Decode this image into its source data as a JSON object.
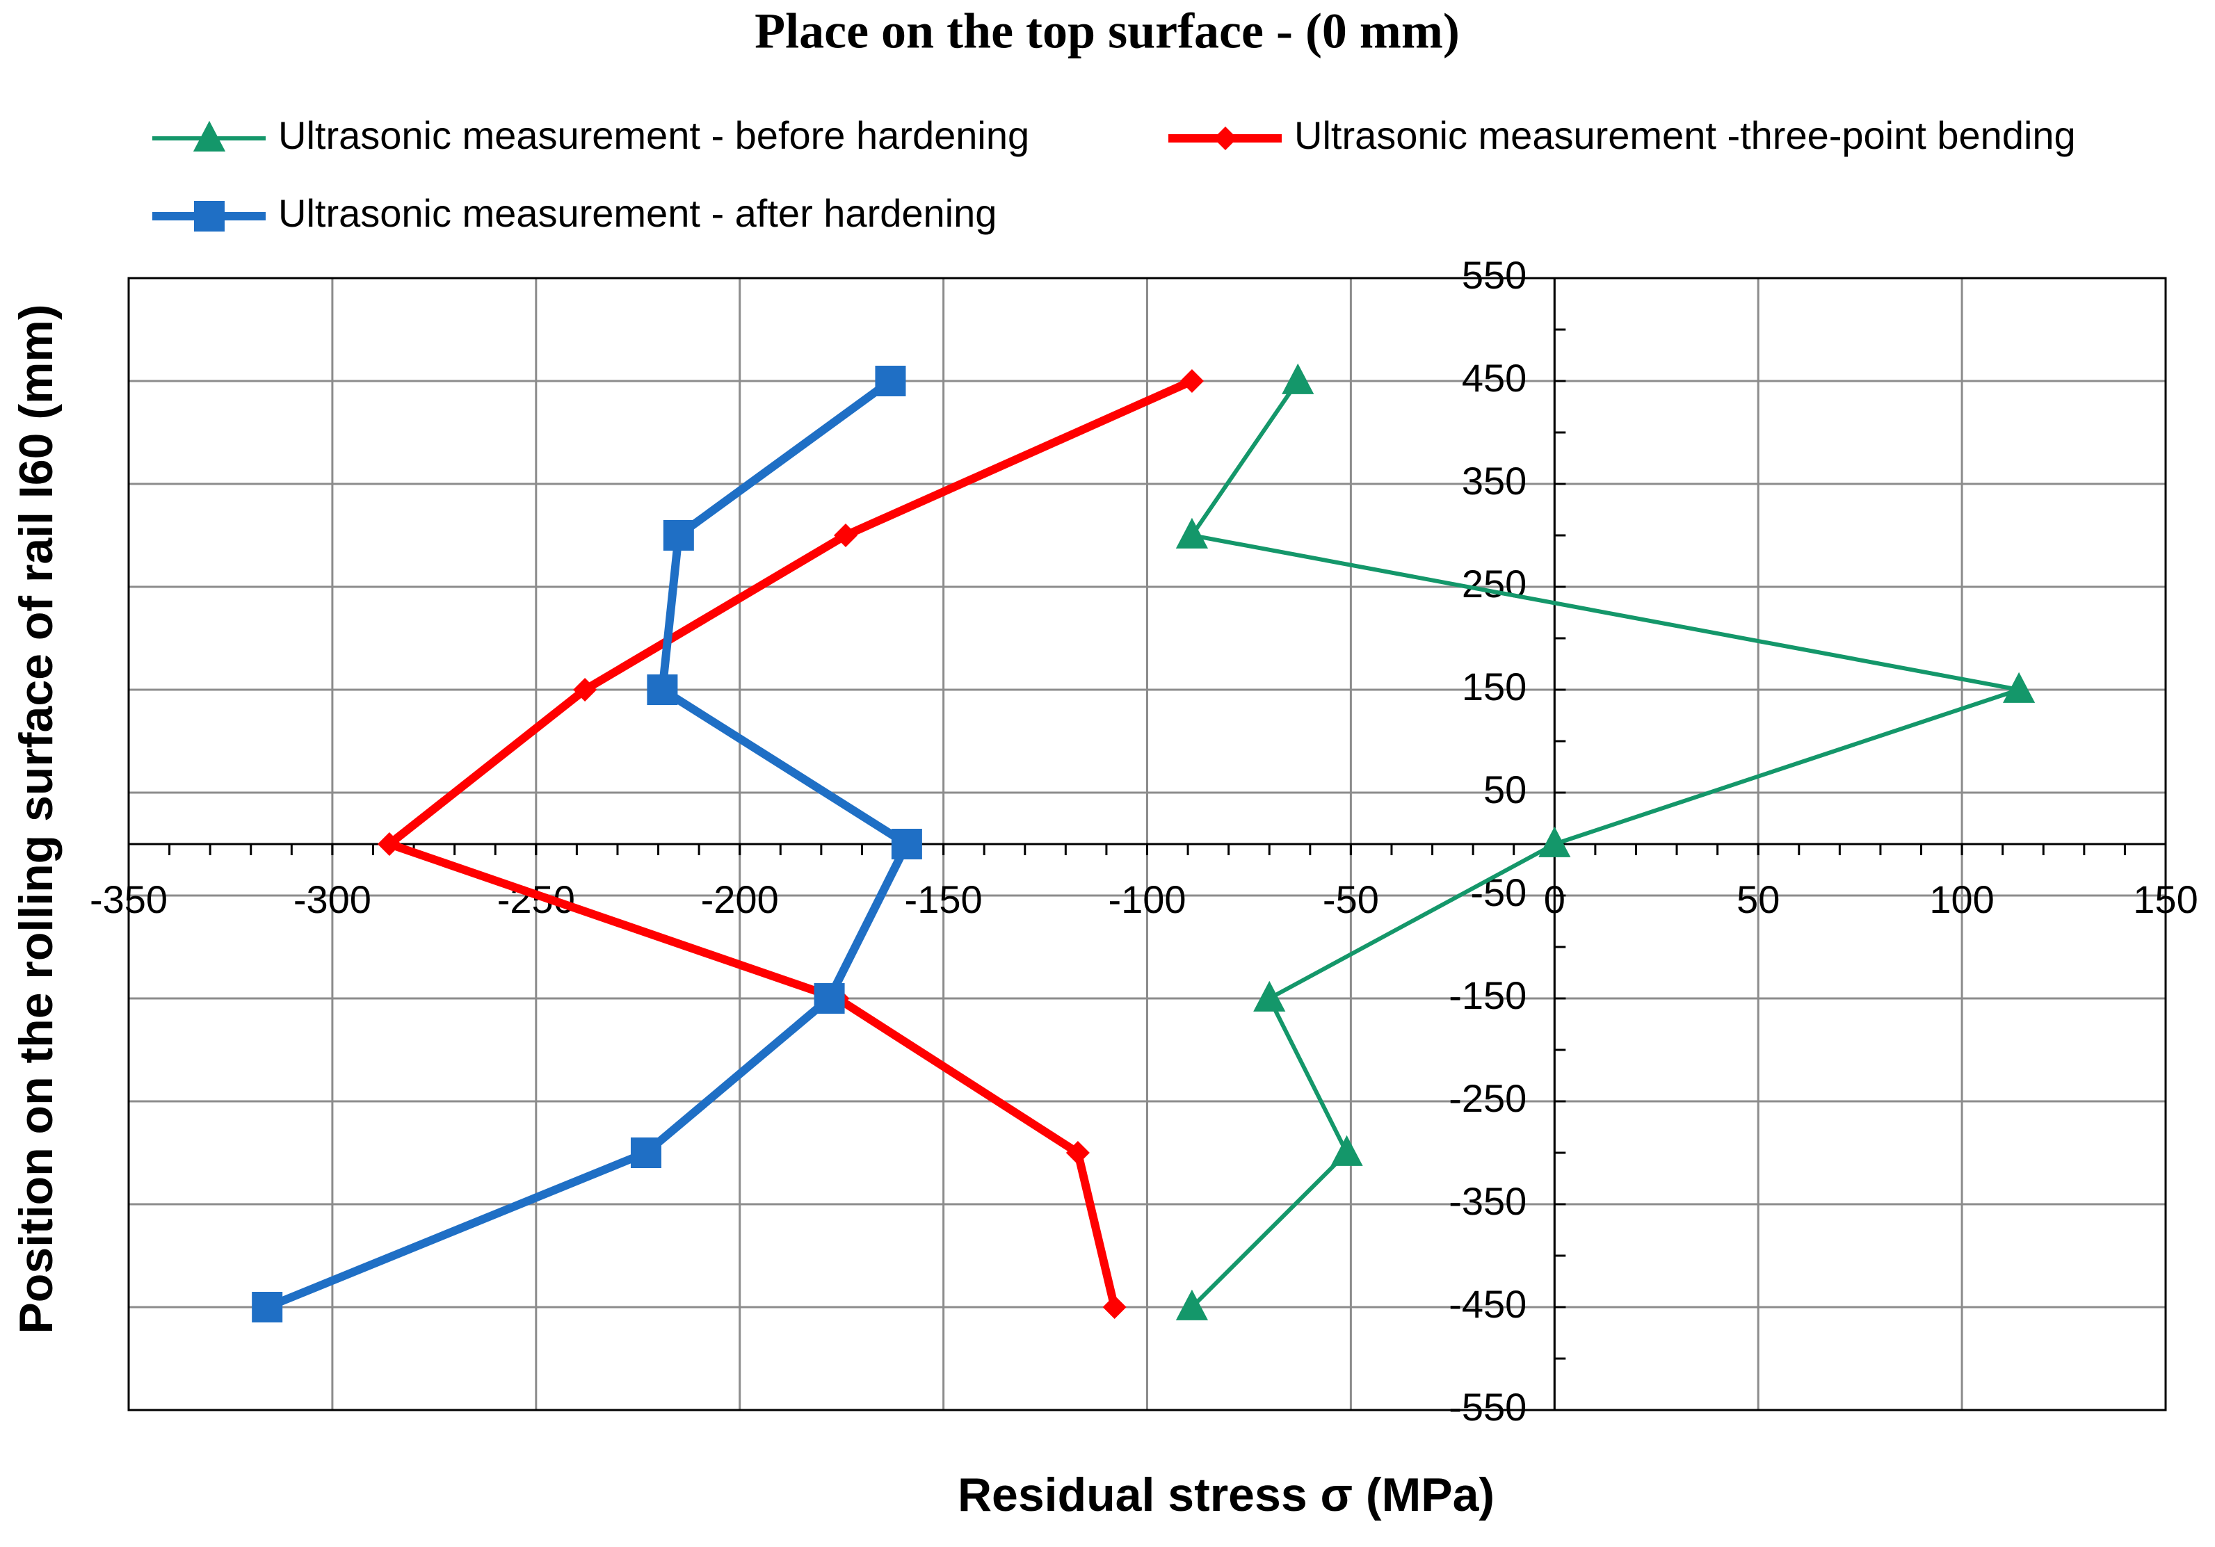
{
  "chart_data": {
    "type": "line",
    "title": "Place on the top surface - (0 mm)",
    "x_label": "Residual stress  σ (MPa)",
    "y_label": "Position on the rolling surface of rail I60 (mm)",
    "y": [
      450,
      300,
      150,
      0,
      -150,
      -300,
      -450
    ],
    "series": [
      {
        "name": "Ultrasonic measurement - before hardening",
        "color": "#14976a",
        "marker": "triangle",
        "values": [
          -63,
          -89,
          114,
          0,
          -70,
          -51,
          -89
        ]
      },
      {
        "name": "Ultrasonic measurement -three-point bending",
        "color": "#ff0000",
        "marker": "diamond",
        "values": [
          -89,
          -174,
          -238,
          -286,
          -176,
          -117,
          -108
        ]
      },
      {
        "name": "Ultrasonic measurement - after hardening",
        "color": "#1f6fc5",
        "marker": "square",
        "values": [
          -163,
          -215,
          -219,
          -159,
          -178,
          -223,
          -316
        ]
      }
    ],
    "xlim": [
      -350,
      150
    ],
    "xticks": [
      -350,
      -300,
      -250,
      -200,
      -150,
      -100,
      -50,
      0,
      50,
      100,
      150
    ],
    "ylim": [
      -550,
      550
    ],
    "yticks": [
      550,
      450,
      350,
      250,
      150,
      50,
      -50,
      -150,
      -250,
      -350,
      -450,
      -550
    ],
    "grid": true,
    "legend": "top"
  }
}
